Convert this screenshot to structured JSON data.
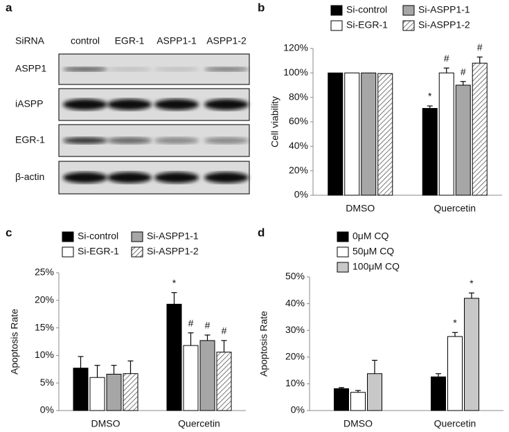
{
  "blot": {
    "label": "a",
    "header": "SiRNA",
    "lanes": [
      "control",
      "EGR-1",
      "ASPP1-1",
      "ASPP1-2"
    ],
    "rows": [
      "ASPP1",
      "iASPP",
      "EGR-1",
      "β-actin"
    ]
  },
  "chart_data": [
    {
      "type": "bar",
      "label": "b",
      "ylabel": "Cell viability",
      "categories": [
        "DMSO",
        "Quercetin"
      ],
      "ylim": [
        0,
        120
      ],
      "yticks": [
        {
          "value": 0,
          "label": "0%"
        },
        {
          "value": 20,
          "label": "20%"
        },
        {
          "value": 40,
          "label": "40%"
        },
        {
          "value": 60,
          "label": "60%"
        },
        {
          "value": 80,
          "label": "80%"
        },
        {
          "value": 100,
          "label": "100%"
        },
        {
          "value": 120,
          "label": "120%"
        }
      ],
      "legend_columns": 2,
      "series": [
        {
          "name": "Si-control",
          "color": "#000000",
          "values": [
            100,
            71
          ],
          "errors": [
            null,
            2
          ],
          "annotations": [
            null,
            "*"
          ]
        },
        {
          "name": "Si-EGR-1",
          "color": "#ffffff",
          "values": [
            100,
            100
          ],
          "errors": [
            null,
            4
          ],
          "annotations": [
            null,
            "#"
          ]
        },
        {
          "name": "Si-ASPP1-1",
          "color": "#a6a6a6",
          "values": [
            100,
            90
          ],
          "errors": [
            null,
            3
          ],
          "annotations": [
            null,
            "#"
          ]
        },
        {
          "name": "Si-ASPP1-2",
          "color": "#ffffff",
          "hatch": true,
          "values": [
            99.5,
            108
          ],
          "errors": [
            null,
            5
          ],
          "annotations": [
            null,
            "#"
          ]
        }
      ]
    },
    {
      "type": "bar",
      "label": "c",
      "ylabel": "Apoptosis Rate",
      "categories": [
        "DMSO",
        "Quercetin"
      ],
      "ylim": [
        0,
        25
      ],
      "yticks": [
        {
          "value": 0,
          "label": "0%"
        },
        {
          "value": 5,
          "label": "5%"
        },
        {
          "value": 10,
          "label": "10%"
        },
        {
          "value": 15,
          "label": "15%"
        },
        {
          "value": 20,
          "label": "20%"
        },
        {
          "value": 25,
          "label": "25%"
        }
      ],
      "legend_columns": 2,
      "series": [
        {
          "name": "Si-control",
          "color": "#000000",
          "values": [
            7.7,
            19.3
          ],
          "errors": [
            2.1,
            2.1
          ],
          "annotations": [
            null,
            "*"
          ]
        },
        {
          "name": "Si-EGR-1",
          "color": "#ffffff",
          "values": [
            6.0,
            11.8
          ],
          "errors": [
            2.2,
            2.3
          ],
          "annotations": [
            null,
            "#"
          ]
        },
        {
          "name": "Si-ASPP1-1",
          "color": "#a6a6a6",
          "values": [
            6.6,
            12.7
          ],
          "errors": [
            1.6,
            1.0
          ],
          "annotations": [
            null,
            "#"
          ]
        },
        {
          "name": "Si-ASPP1-2",
          "color": "#ffffff",
          "hatch": true,
          "values": [
            6.7,
            10.6
          ],
          "errors": [
            2.3,
            2.1
          ],
          "annotations": [
            null,
            "#"
          ]
        }
      ]
    },
    {
      "type": "bar",
      "label": "d",
      "ylabel": "Apoptosis Rate",
      "categories": [
        "DMSO",
        "Quercetin"
      ],
      "ylim": [
        0,
        50
      ],
      "yticks": [
        {
          "value": 0,
          "label": "0%"
        },
        {
          "value": 10,
          "label": "10%"
        },
        {
          "value": 20,
          "label": "20%"
        },
        {
          "value": 30,
          "label": "30%"
        },
        {
          "value": 40,
          "label": "40%"
        },
        {
          "value": 50,
          "label": "50%"
        }
      ],
      "legend_columns": 1,
      "series": [
        {
          "name": "0μM CQ",
          "color": "#000000",
          "values": [
            8.2,
            12.6
          ],
          "errors": [
            0.4,
            1.2
          ],
          "annotations": [
            null,
            null
          ]
        },
        {
          "name": "50μM CQ",
          "color": "#ffffff",
          "values": [
            6.8,
            27.7
          ],
          "errors": [
            0.7,
            1.5
          ],
          "annotations": [
            null,
            "*"
          ]
        },
        {
          "name": "100μM CQ",
          "color": "#c8c8c8",
          "values": [
            13.8,
            42
          ],
          "errors": [
            5,
            2
          ],
          "annotations": [
            null,
            "*"
          ]
        }
      ]
    }
  ]
}
